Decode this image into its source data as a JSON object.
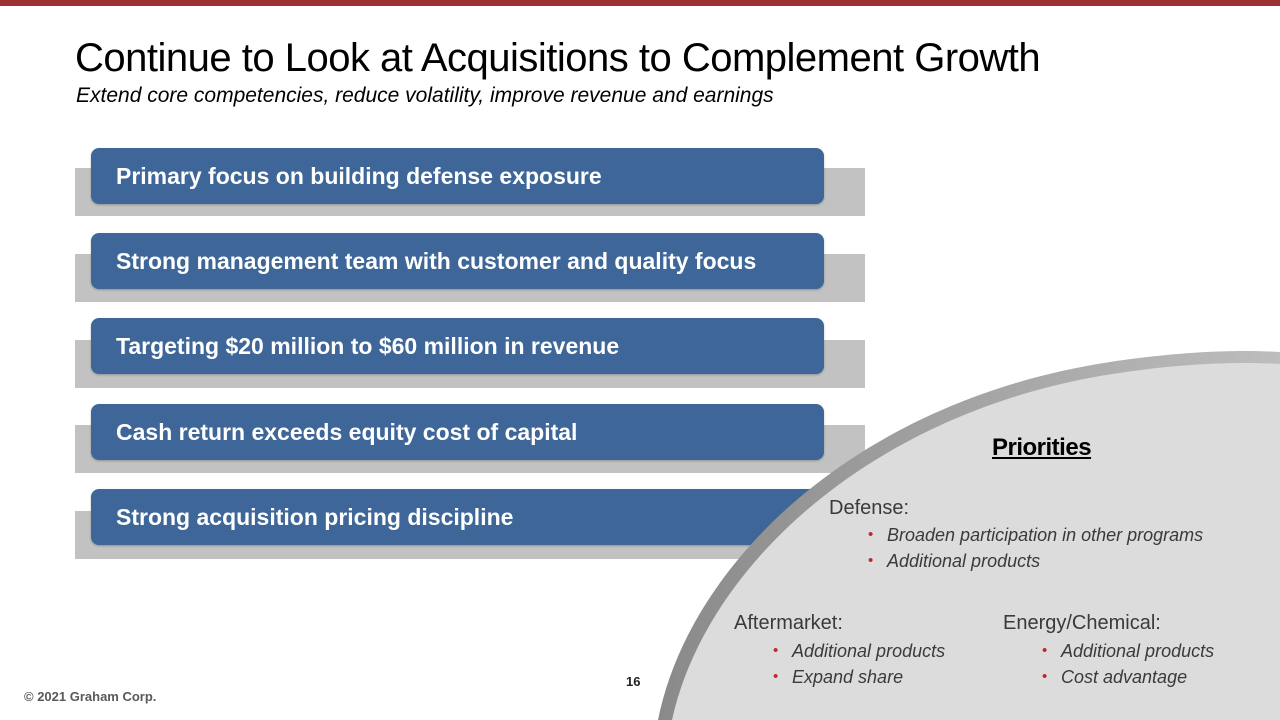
{
  "colors": {
    "accent_bar": "#9b3133",
    "row_fill": "#3e6698",
    "row_shadow": "#c2c2c2",
    "arc_fill": "#dcdcdc",
    "bullet": "#c0282d"
  },
  "slide": {
    "title": "Continue to Look at Acquisitions to Complement Growth",
    "subtitle": "Extend core competencies, reduce volatility, improve revenue and earnings"
  },
  "criteria": [
    "Primary focus on building defense exposure",
    "Strong management team with customer and quality focus",
    "Targeting $20 million to $60 million in revenue",
    "Cash return exceeds equity cost of capital",
    "Strong acquisition pricing discipline"
  ],
  "priorities": {
    "heading": "Priorities",
    "defense": {
      "label": "Defense:",
      "items": [
        "Broaden participation in other programs",
        "Additional products"
      ]
    },
    "aftermarket": {
      "label": "Aftermarket:",
      "items": [
        "Additional products",
        "Expand share"
      ]
    },
    "energy": {
      "label": "Energy/Chemical:",
      "items": [
        "Additional products",
        "Cost advantage"
      ]
    }
  },
  "footer": {
    "page_number": "16",
    "copyright": "© 2021 Graham Corp."
  }
}
